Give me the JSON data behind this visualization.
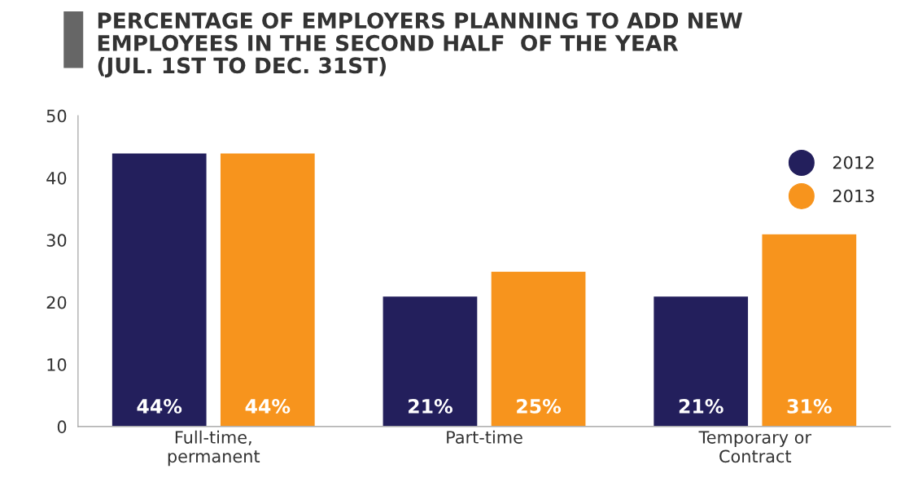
{
  "chart_data": {
    "type": "bar",
    "title": "PERCENTAGE OF EMPLOYERS PLANNING TO ADD NEW\nEMPLOYEES IN THE SECOND HALF  OF THE YEAR\n(JUL. 1ST TO DEC. 31ST)",
    "categories": [
      "Full-time,\npermanent",
      "Part-time",
      "Temporary or\nContract"
    ],
    "series": [
      {
        "name": "2012",
        "color": "#231f5c",
        "values": [
          44,
          21,
          21
        ],
        "value_labels": [
          "44%",
          "21%",
          "21%"
        ]
      },
      {
        "name": "2013",
        "color": "#f7941d",
        "values": [
          44,
          25,
          31
        ],
        "value_labels": [
          "44%",
          "25%",
          "31%"
        ]
      }
    ],
    "ylim": [
      0,
      50
    ],
    "yticks": [
      0,
      10,
      20,
      30,
      40,
      50
    ],
    "grid": false,
    "legend": "top right",
    "marker": "circle"
  }
}
